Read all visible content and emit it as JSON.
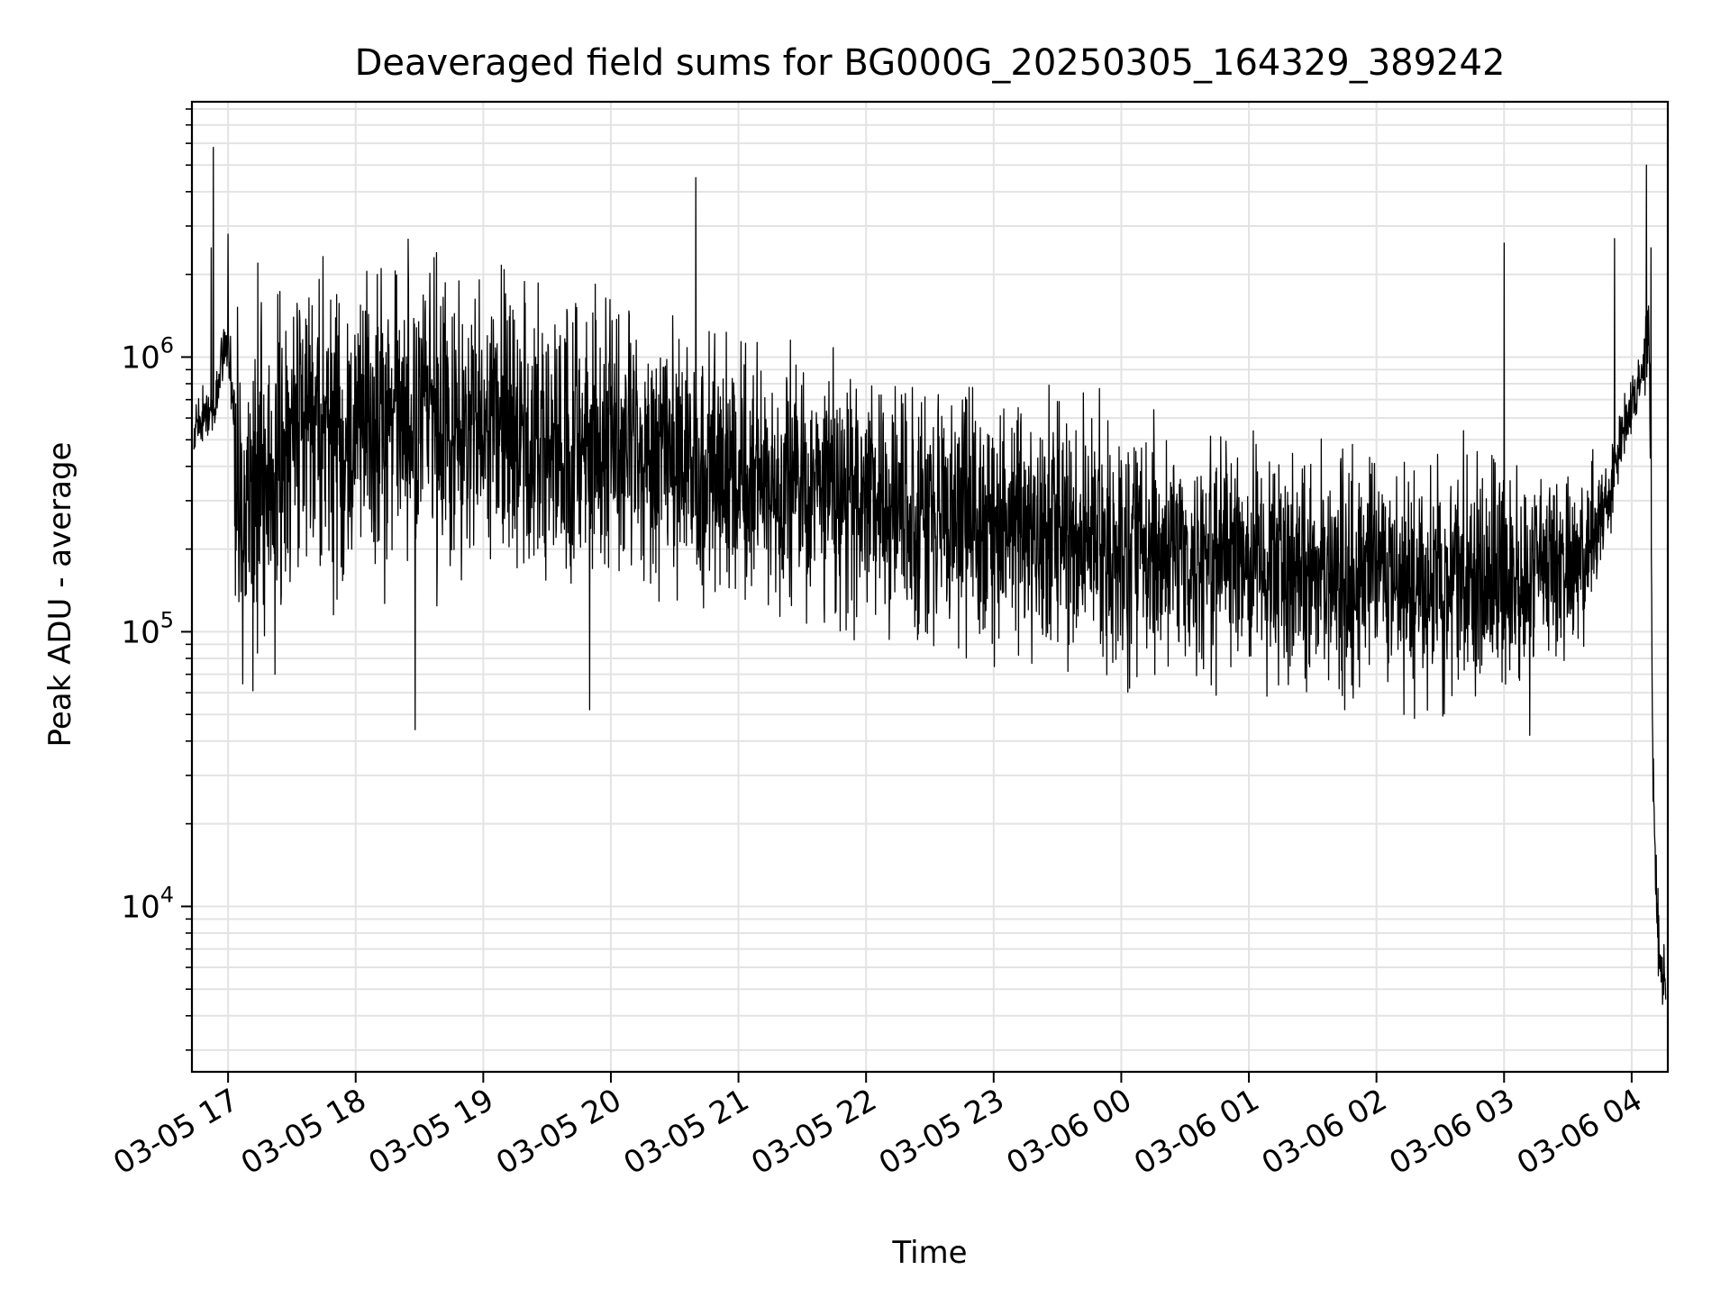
{
  "chart_data": {
    "type": "line",
    "title": "Deaveraged field sums for BG000G_20250305_164329_389242",
    "xlabel": "Time",
    "ylabel": "Peak ADU - average",
    "x_scale": "time",
    "y_scale": "log",
    "xlim": [
      "2025-03-05 16:43",
      "2025-03-06 04:17"
    ],
    "ylim": [
      2500,
      8500000
    ],
    "grid": true,
    "grid_minor_y": true,
    "line_color": "#000000",
    "grid_color": "#e3e3e3",
    "xticks": [
      {
        "t": "2025-03-05 17:00",
        "label": "03-05 17"
      },
      {
        "t": "2025-03-05 18:00",
        "label": "03-05 18"
      },
      {
        "t": "2025-03-05 19:00",
        "label": "03-05 19"
      },
      {
        "t": "2025-03-05 20:00",
        "label": "03-05 20"
      },
      {
        "t": "2025-03-05 21:00",
        "label": "03-05 21"
      },
      {
        "t": "2025-03-05 22:00",
        "label": "03-05 22"
      },
      {
        "t": "2025-03-05 23:00",
        "label": "03-05 23"
      },
      {
        "t": "2025-03-06 00:00",
        "label": "03-06 00"
      },
      {
        "t": "2025-03-06 01:00",
        "label": "03-06 01"
      },
      {
        "t": "2025-03-06 02:00",
        "label": "03-06 02"
      },
      {
        "t": "2025-03-06 03:00",
        "label": "03-06 03"
      },
      {
        "t": "2025-03-06 04:00",
        "label": "03-06 04"
      }
    ],
    "yticks": [
      {
        "v": 10000,
        "base": "10",
        "exp": "4"
      },
      {
        "v": 100000,
        "base": "10",
        "exp": "5"
      },
      {
        "v": 1000000,
        "base": "10",
        "exp": "6"
      }
    ],
    "series": [
      {
        "x": [
          "2025-03-05 16:44",
          "2025-03-05 16:48",
          "2025-03-05 16:52",
          "2025-03-05 16:55",
          "2025-03-05 16:57",
          "2025-03-05 17:00",
          "2025-03-05 17:02",
          "2025-03-05 17:04",
          "2025-03-05 17:07",
          "2025-03-05 17:10",
          "2025-03-05 17:14",
          "2025-03-05 17:18",
          "2025-03-05 17:22",
          "2025-03-05 17:30",
          "2025-03-05 17:40",
          "2025-03-05 17:50",
          "2025-03-05 18:00",
          "2025-03-05 18:15",
          "2025-03-05 18:30",
          "2025-03-05 18:45",
          "2025-03-05 19:00",
          "2025-03-05 19:30",
          "2025-03-05 20:00",
          "2025-03-05 20:30",
          "2025-03-05 21:00",
          "2025-03-05 21:30",
          "2025-03-05 22:00",
          "2025-03-05 22:30",
          "2025-03-05 23:00",
          "2025-03-05 23:30",
          "2025-03-06 00:00",
          "2025-03-06 00:30",
          "2025-03-06 01:00",
          "2025-03-06 01:30",
          "2025-03-06 02:00",
          "2025-03-06 02:30",
          "2025-03-06 03:00",
          "2025-03-06 03:20",
          "2025-03-06 03:40",
          "2025-03-06 03:50",
          "2025-03-06 03:55",
          "2025-03-06 04:00",
          "2025-03-06 04:05",
          "2025-03-06 04:08",
          "2025-03-06 04:09",
          "2025-03-06 04:10",
          "2025-03-06 04:12",
          "2025-03-06 04:14",
          "2025-03-06 04:16"
        ],
        "center": [
          550000,
          600000,
          650000,
          700000,
          1000000,
          1100000,
          700000,
          350000,
          300000,
          320000,
          350000,
          380000,
          420000,
          500000,
          520000,
          540000,
          560000,
          560000,
          560000,
          540000,
          520000,
          500000,
          480000,
          430000,
          360000,
          330000,
          300000,
          270000,
          250000,
          240000,
          210000,
          195000,
          185000,
          175000,
          165000,
          160000,
          155000,
          160000,
          200000,
          320000,
          500000,
          650000,
          900000,
          1300000,
          400000,
          30000,
          9000,
          5500,
          5000
        ],
        "amp": [
          0.15,
          0.15,
          0.15,
          0.15,
          0.15,
          0.15,
          0.3,
          0.9,
          0.9,
          0.9,
          0.9,
          0.9,
          0.9,
          0.85,
          0.85,
          0.85,
          0.85,
          0.85,
          0.85,
          0.85,
          0.8,
          0.8,
          0.8,
          0.75,
          0.7,
          0.7,
          0.7,
          0.7,
          0.7,
          0.7,
          0.65,
          0.65,
          0.65,
          0.65,
          0.65,
          0.65,
          0.65,
          0.6,
          0.45,
          0.25,
          0.2,
          0.2,
          0.2,
          0.25,
          0.2,
          0.2,
          0.25,
          0.25,
          0.2
        ],
        "spikes": [
          {
            "t": "2025-03-05 16:53",
            "v": 5800000
          },
          {
            "t": "2025-03-05 16:52",
            "v": 2500000
          },
          {
            "t": "2025-03-05 17:00",
            "v": 2800000
          },
          {
            "t": "2025-03-05 17:14",
            "v": 2200000
          },
          {
            "t": "2025-03-05 18:12",
            "v": 2100000
          },
          {
            "t": "2025-03-05 18:38",
            "v": 2400000
          },
          {
            "t": "2025-03-05 20:40",
            "v": 4500000
          },
          {
            "t": "2025-03-06 03:00",
            "v": 2600000
          },
          {
            "t": "2025-03-06 03:52",
            "v": 2700000
          },
          {
            "t": "2025-03-06 04:07",
            "v": 5000000
          },
          {
            "t": "2025-03-06 04:09",
            "v": 2500000
          }
        ],
        "dips": [
          {
            "t": "2025-03-05 18:28",
            "v": 44000
          },
          {
            "t": "2025-03-05 19:50",
            "v": 52000
          },
          {
            "t": "2025-03-06 03:12",
            "v": 42000
          },
          {
            "t": "2025-03-05 17:22",
            "v": 70000
          },
          {
            "t": "2025-03-06 02:13",
            "v": 50000
          },
          {
            "t": "2025-03-06 01:45",
            "v": 52000
          }
        ]
      }
    ]
  }
}
